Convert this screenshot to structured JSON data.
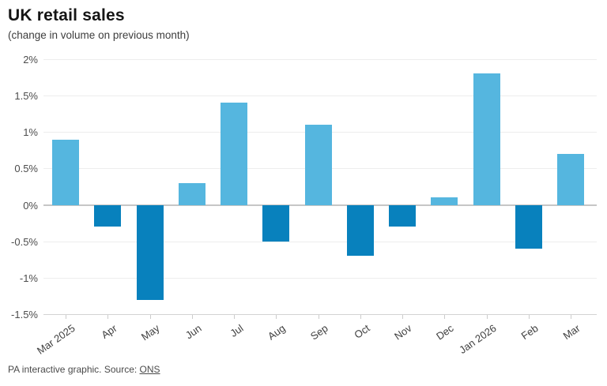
{
  "header": {
    "title": "UK retail sales",
    "subtitle": "(change in volume on previous month)"
  },
  "chart_data": {
    "type": "bar",
    "title": "UK retail sales",
    "subtitle": "(change in volume on previous month)",
    "categories": [
      "Mar 2025",
      "Apr",
      "May",
      "Jun",
      "Jul",
      "Aug",
      "Sep",
      "Oct",
      "Nov",
      "Dec",
      "Jan 2026",
      "Feb",
      "Mar"
    ],
    "values": [
      0.9,
      -0.3,
      -1.3,
      0.3,
      1.4,
      -0.5,
      1.1,
      -0.7,
      -0.3,
      0.1,
      1.8,
      -0.6,
      0.7
    ],
    "unit": "%",
    "xlabel": "",
    "ylabel": "",
    "ylim": [
      -1.5,
      2
    ],
    "yticks": [
      {
        "value": 2,
        "label": "2%"
      },
      {
        "value": 1.5,
        "label": "1.5%"
      },
      {
        "value": 1,
        "label": "1%"
      },
      {
        "value": 0.5,
        "label": "0.5%"
      },
      {
        "value": 0,
        "label": "0%"
      },
      {
        "value": -0.5,
        "label": "-0.5%"
      },
      {
        "value": -1,
        "label": "-1%"
      },
      {
        "value": -1.5,
        "label": "-1.5%"
      }
    ],
    "grid": "horizontal",
    "legend": "none",
    "colors": {
      "positive": "#55b6df",
      "negative": "#0881bd"
    }
  },
  "footer": {
    "text": "PA interactive graphic. Source: ",
    "link_label": "ONS"
  }
}
